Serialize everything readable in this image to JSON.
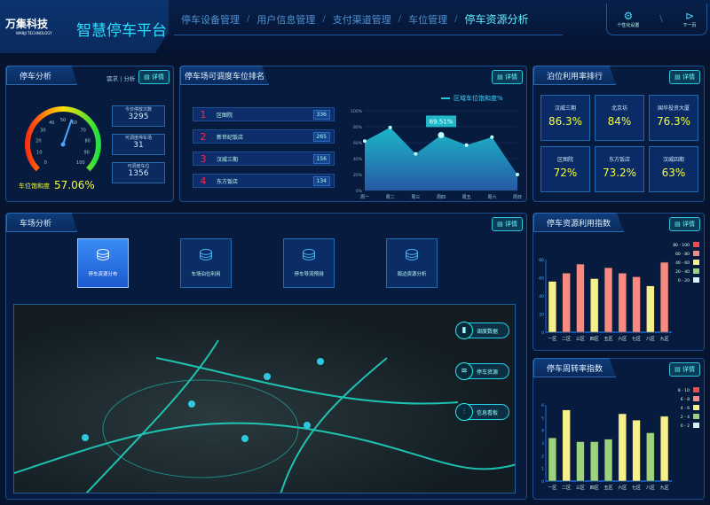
{
  "header": {
    "logo": "万集科技",
    "logo_sub": "WANJI TECHNOLOGY",
    "title": "智慧停车平台",
    "nav": [
      {
        "label": "停车设备管理"
      },
      {
        "label": "用户信息管理"
      },
      {
        "label": "支付渠道管理"
      },
      {
        "label": "车位管理"
      },
      {
        "label": "停车资源分析",
        "active": true
      }
    ],
    "tools": [
      {
        "label": "个性化设置",
        "icon": "gear-icon"
      },
      {
        "label": "下一页",
        "icon": "chevron-right-circle-icon"
      }
    ]
  },
  "detail_label": "详情",
  "parking": {
    "title": "停车分析",
    "tabs": [
      "需求",
      "分析"
    ],
    "saturation_label": "车位饱和度",
    "saturation": "57.06%",
    "gauge_value": 57.06,
    "gauge_ticks": [
      "0",
      "10",
      "20",
      "30",
      "40",
      "50",
      "60",
      "70",
      "80",
      "90",
      "100"
    ],
    "stats": [
      {
        "label": "今日停放次数",
        "value": "3295"
      },
      {
        "label": "可调度停车场",
        "value": "31"
      },
      {
        "label": "可调度车位",
        "value": "1356"
      }
    ]
  },
  "ranking": {
    "title": "停车场可调度车位排名",
    "items": [
      {
        "rank": "1",
        "name": "区图院",
        "value": "336"
      },
      {
        "rank": "2",
        "name": "新世纪饭店",
        "value": "265"
      },
      {
        "rank": "3",
        "name": "汉威三期",
        "value": "156"
      },
      {
        "rank": "4",
        "name": "东方饭店",
        "value": "134"
      }
    ]
  },
  "chart_data": [
    {
      "type": "area",
      "legend": "区域车位饱和度%",
      "legend_position": "top-right",
      "categories": [
        "周一",
        "周二",
        "周三",
        "周四",
        "周五",
        "周六",
        "周日"
      ],
      "values": [
        62,
        79,
        46,
        69.51,
        57,
        67,
        20
      ],
      "ylim": [
        0,
        100
      ],
      "yticks": [
        "0%",
        "20%",
        "40%",
        "60%",
        "80%",
        "100%"
      ],
      "tooltip": "69.51%",
      "color": "#1ec8d8"
    },
    {
      "type": "bar",
      "title": "停车资源利用指数",
      "categories": [
        "一区",
        "二区",
        "三区",
        "四区",
        "五区",
        "六区",
        "七区",
        "八区",
        "九区"
      ],
      "values": [
        56,
        65,
        75,
        59,
        71,
        65,
        61,
        51,
        77
      ],
      "ylim": [
        0,
        80
      ],
      "yticks": [
        "0",
        "20",
        "40",
        "60",
        "80"
      ],
      "legend": [
        {
          "range": "80 - 100",
          "color": "#f04a4a"
        },
        {
          "range": "60 - 80",
          "color": "#f88a80"
        },
        {
          "range": "40 - 60",
          "color": "#f5f08a"
        },
        {
          "range": "20 - 40",
          "color": "#9ad47c"
        },
        {
          "range": "0 - 20",
          "color": "#d8f0f8"
        }
      ]
    },
    {
      "type": "bar",
      "title": "停车周转率指数",
      "categories": [
        "一区",
        "二区",
        "三区",
        "四区",
        "五区",
        "六区",
        "七区",
        "八区",
        "九区"
      ],
      "values": [
        3.4,
        5.6,
        3.1,
        3.1,
        3.3,
        5.3,
        4.8,
        3.8,
        5.1
      ],
      "ylim": [
        0,
        6
      ],
      "yticks": [
        "0",
        "1",
        "2",
        "3",
        "4",
        "5",
        "6"
      ],
      "legend": [
        {
          "range": "8 - 10",
          "color": "#f04a4a"
        },
        {
          "range": "6 - 8",
          "color": "#f88a80"
        },
        {
          "range": "4 - 6",
          "color": "#f5f08a"
        },
        {
          "range": "2 - 4",
          "color": "#9ad47c"
        },
        {
          "range": "0 - 2",
          "color": "#d8f0f8"
        }
      ]
    }
  ],
  "utilization": {
    "title": "泊位利用率排行",
    "items": [
      {
        "name": "汉威三期",
        "value": "86.3%"
      },
      {
        "name": "北京坊",
        "value": "84%"
      },
      {
        "name": "国华投资大厦",
        "value": "76.3%"
      },
      {
        "name": "区图院",
        "value": "72%"
      },
      {
        "name": "东方饭店",
        "value": "73.2%"
      },
      {
        "name": "汉威四期",
        "value": "63%"
      }
    ]
  },
  "field": {
    "title": "车场分析",
    "cards": [
      {
        "label": "停车资源分布",
        "selected": true
      },
      {
        "label": "车场泊位利用"
      },
      {
        "label": "停车导流预测"
      },
      {
        "label": "周边资源分析"
      }
    ],
    "map_buttons": [
      {
        "label": "调度数据",
        "icon": "bar-chart-icon"
      },
      {
        "label": "停车资源",
        "icon": "database-icon"
      },
      {
        "label": "信息看板",
        "icon": "dashboard-icon"
      }
    ]
  }
}
